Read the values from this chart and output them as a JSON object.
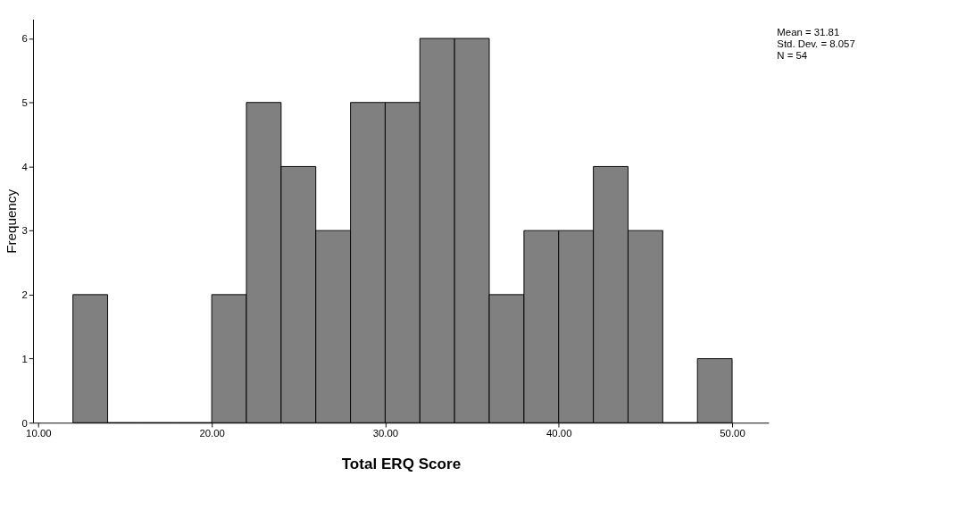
{
  "chart_data": {
    "type": "histogram",
    "xlabel": "Total ERQ Score",
    "ylabel": "Frequency",
    "color": "#808080",
    "bins": [
      12,
      14,
      16,
      18,
      20,
      22,
      24,
      26,
      28,
      30,
      32,
      34,
      36,
      38,
      40,
      42,
      44,
      46,
      48,
      50
    ],
    "values": [
      2,
      0,
      0,
      0,
      2,
      5,
      4,
      3,
      5,
      5,
      6,
      6,
      2,
      3,
      3,
      4,
      3,
      0,
      1
    ],
    "xlim": [
      9.7,
      52.1
    ],
    "ylim": [
      0,
      6.3
    ],
    "xticks": [
      {
        "value": 10,
        "label": "10.00"
      },
      {
        "value": 20,
        "label": "20.00"
      },
      {
        "value": 30,
        "label": "30.00"
      },
      {
        "value": 40,
        "label": "40.00"
      },
      {
        "value": 50,
        "label": "50.00"
      }
    ],
    "yticks": [
      0,
      1,
      2,
      3,
      4,
      5,
      6
    ],
    "grid": false,
    "annotations": [
      "Mean = 31.81",
      "Std. Dev. = 8.057",
      "N = 54"
    ]
  }
}
